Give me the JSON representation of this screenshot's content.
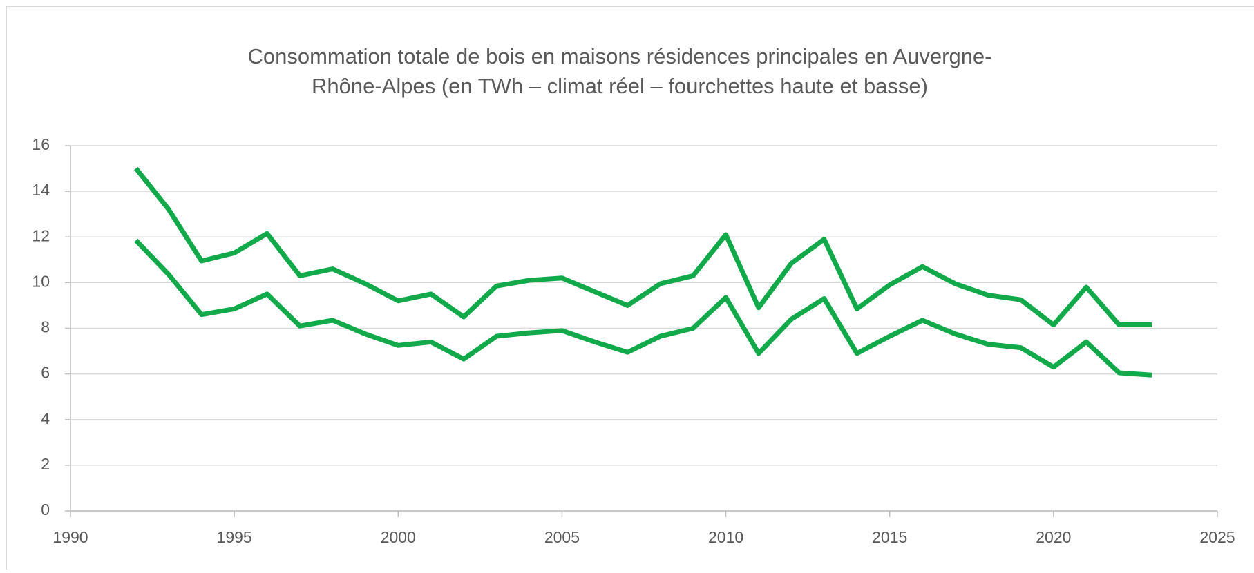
{
  "chart_data": {
    "type": "line",
    "title": [
      "Consommation totale de bois en maisons résidences principales en Auvergne-",
      "Rhône-Alpes (en TWh – climat réel – fourchettes haute et basse)"
    ],
    "x": [
      1992,
      1993,
      1994,
      1995,
      1996,
      1997,
      1998,
      1999,
      2000,
      2001,
      2002,
      2003,
      2004,
      2005,
      2006,
      2007,
      2008,
      2009,
      2010,
      2011,
      2012,
      2013,
      2014,
      2015,
      2016,
      2017,
      2018,
      2019,
      2020,
      2021,
      2022,
      2023
    ],
    "series": [
      {
        "color": "#12a94a",
        "values": [
          15.0,
          13.2,
          10.95,
          11.3,
          12.15,
          10.3,
          10.6,
          9.95,
          9.2,
          9.5,
          8.5,
          9.85,
          10.1,
          10.2,
          9.6,
          9.0,
          9.95,
          10.3,
          12.1,
          8.9,
          10.85,
          11.9,
          8.85,
          9.9,
          10.7,
          9.95,
          9.45,
          9.25,
          8.15,
          9.8,
          8.15,
          8.15
        ]
      },
      {
        "color": "#12a94a",
        "values": [
          11.85,
          10.35,
          8.6,
          8.85,
          9.5,
          8.1,
          8.35,
          7.75,
          7.25,
          7.4,
          6.65,
          7.65,
          7.8,
          7.9,
          7.4,
          6.95,
          7.65,
          8.0,
          9.35,
          6.9,
          8.4,
          9.3,
          6.9,
          7.65,
          8.35,
          7.75,
          7.3,
          7.15,
          6.3,
          7.4,
          6.05,
          5.95
        ]
      }
    ],
    "xlim": [
      1990,
      2025
    ],
    "xticks": [
      1990,
      1995,
      2000,
      2005,
      2010,
      2015,
      2020,
      2025
    ],
    "ylim": [
      0,
      16
    ],
    "yticks": [
      0,
      2,
      4,
      6,
      8,
      10,
      12,
      14,
      16
    ],
    "grid": true
  }
}
